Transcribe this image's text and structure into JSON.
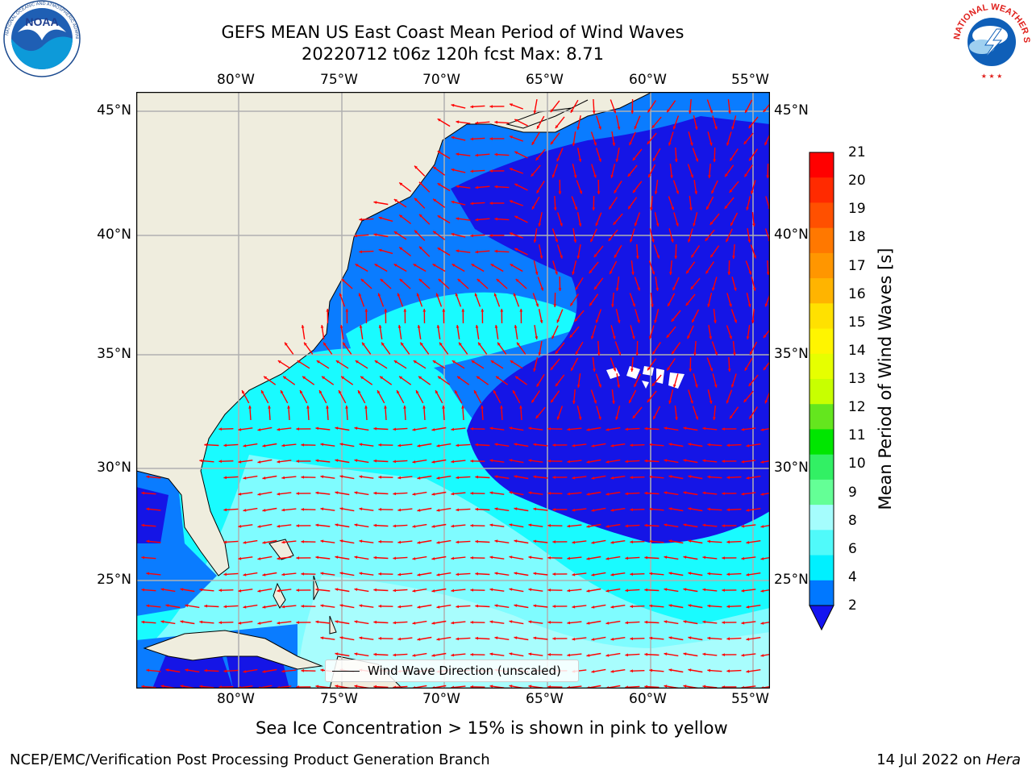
{
  "header": {
    "title_line1": "GEFS MEAN US East Coast Mean Period of Wind Waves",
    "title_line2": "20220712 t06z 120h fcst   Max: 8.71"
  },
  "logos": {
    "left": {
      "name": "NOAA",
      "ring_text": "NATIONAL OCEANIC AND ATMOSPHERIC ADMINISTRATION · U.S. DEPARTMENT OF COMMERCE"
    },
    "right": {
      "name": "NATIONAL WEATHER SERVICE"
    }
  },
  "map": {
    "lon_ticks": [
      "80°W",
      "75°W",
      "70°W",
      "65°W",
      "60°W",
      "55°W"
    ],
    "lat_ticks": [
      "45°N",
      "40°N",
      "35°N",
      "30°N",
      "25°N"
    ],
    "legend_label": "Wind Wave Direction (unscaled)",
    "colors": {
      "land": "#efedde",
      "period_2_4": "#0a7cff",
      "period_lt_2": "#1515e6",
      "period_4_6": "#19fbff",
      "period_6_8": "#7ffcff",
      "period_8_9": "#a8fdfd",
      "arrows": "#ff0000",
      "grid": "#b0b0b0"
    }
  },
  "colorbar": {
    "title": "Mean Period of Wind Waves [s]",
    "labels": [
      "21",
      "20",
      "19",
      "18",
      "17",
      "16",
      "15",
      "14",
      "13",
      "12",
      "11",
      "10",
      "9",
      "8",
      "6",
      "4",
      "2"
    ],
    "colors": [
      "#ff0000",
      "#ff2a00",
      "#ff5000",
      "#ff7800",
      "#ff9600",
      "#ffb400",
      "#ffe100",
      "#fff500",
      "#e6ff00",
      "#c8ff00",
      "#64e61e",
      "#00e600",
      "#32f064",
      "#64ff96",
      "#a5fdfd",
      "#50fafa",
      "#00f0ff",
      "#0078ff"
    ],
    "extend_color": "#1414f0"
  },
  "footer": {
    "note": "Sea Ice Concentration > 15% is shown in pink to yellow",
    "credit": "NCEP/EMC/Verification Post Processing Product Generation Branch",
    "date": "14 Jul 2022 on",
    "machine": "Hera"
  }
}
